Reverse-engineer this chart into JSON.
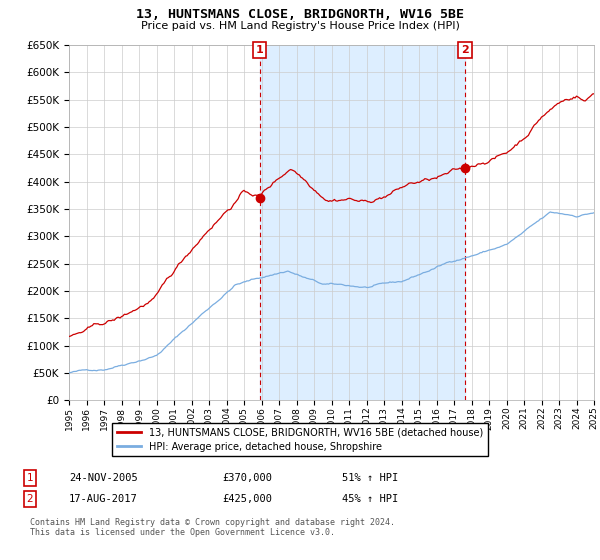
{
  "title": "13, HUNTSMANS CLOSE, BRIDGNORTH, WV16 5BE",
  "subtitle": "Price paid vs. HM Land Registry's House Price Index (HPI)",
  "ylim": [
    0,
    650000
  ],
  "ytick_vals": [
    0,
    50000,
    100000,
    150000,
    200000,
    250000,
    300000,
    350000,
    400000,
    450000,
    500000,
    550000,
    600000,
    650000
  ],
  "red_color": "#cc0000",
  "blue_color": "#7aade0",
  "shade_color": "#ddeeff",
  "marker1_x": 2005.9,
  "marker1_y": 370000,
  "marker2_x": 2017.62,
  "marker2_y": 425000,
  "legend_red_label": "13, HUNTSMANS CLOSE, BRIDGNORTH, WV16 5BE (detached house)",
  "legend_blue_label": "HPI: Average price, detached house, Shropshire",
  "table_row1": [
    "1",
    "24-NOV-2005",
    "£370,000",
    "51% ↑ HPI"
  ],
  "table_row2": [
    "2",
    "17-AUG-2017",
    "£425,000",
    "45% ↑ HPI"
  ],
  "footer": "Contains HM Land Registry data © Crown copyright and database right 2024.\nThis data is licensed under the Open Government Licence v3.0.",
  "background_color": "#ffffff",
  "grid_color": "#cccccc",
  "xmin": 1995,
  "xmax": 2025
}
